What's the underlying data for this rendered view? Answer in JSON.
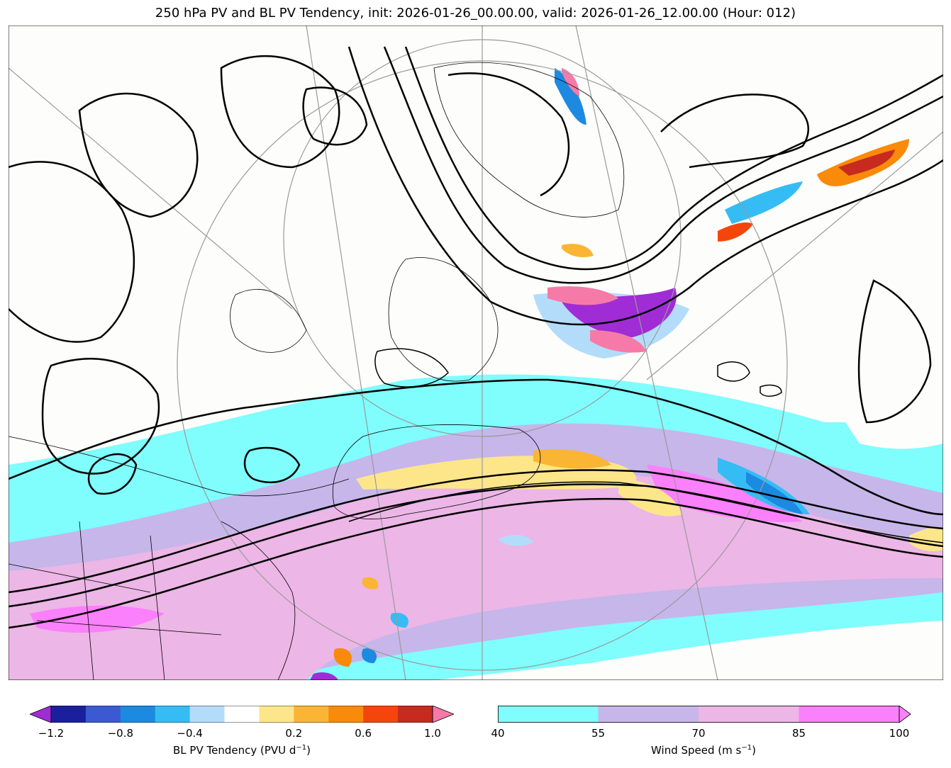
{
  "title": "250 hPa PV and BL PV Tendency, init: 2026-01-26_00.00.00, valid: 2026-01-26_12.00.00 (Hour: 012)",
  "colorbar_left": {
    "label_main": "BL PV Tendency (PVU d",
    "label_exp": "−1",
    "label_close": ")",
    "ticks": [
      "−1.2",
      "−0.8",
      "−0.4",
      "0.2",
      "0.6",
      "1.0"
    ],
    "colors": [
      "#a02cd6",
      "#1a1f9e",
      "#3a59d2",
      "#1b8ae0",
      "#35bcf5",
      "#b3dcfa",
      "#ffffff",
      "#fde68a",
      "#fbb535",
      "#f98a0a",
      "#f4460b",
      "#c72a1f",
      "#f67aa8"
    ]
  },
  "colorbar_right": {
    "label_main": "Wind Speed (m s",
    "label_exp": "−1",
    "label_close": ")",
    "ticks": [
      "40",
      "55",
      "70",
      "85",
      "100"
    ],
    "colors": [
      "#80fdfd",
      "#c6b6ea",
      "#ecb6e6",
      "#fb80fb"
    ]
  }
}
